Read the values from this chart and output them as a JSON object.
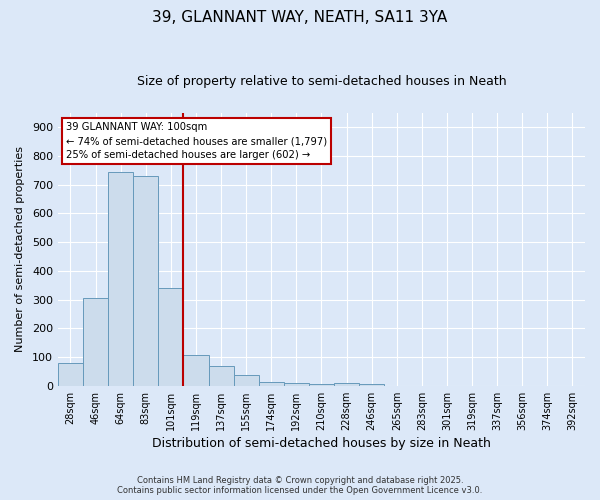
{
  "title": "39, GLANNANT WAY, NEATH, SA11 3YA",
  "subtitle": "Size of property relative to semi-detached houses in Neath",
  "xlabel": "Distribution of semi-detached houses by size in Neath",
  "ylabel": "Number of semi-detached properties",
  "categories": [
    "28sqm",
    "46sqm",
    "64sqm",
    "83sqm",
    "101sqm",
    "119sqm",
    "137sqm",
    "155sqm",
    "174sqm",
    "192sqm",
    "210sqm",
    "228sqm",
    "246sqm",
    "265sqm",
    "283sqm",
    "301sqm",
    "319sqm",
    "337sqm",
    "356sqm",
    "374sqm",
    "392sqm"
  ],
  "values": [
    80,
    307,
    743,
    730,
    340,
    108,
    68,
    38,
    15,
    11,
    5,
    10,
    5,
    0,
    0,
    0,
    0,
    0,
    0,
    0,
    0
  ],
  "bar_color": "#ccdcec",
  "bar_edge_color": "#6699bb",
  "redline_index": 4,
  "redline_color": "#bb0000",
  "annotation_title": "39 GLANNANT WAY: 100sqm",
  "annotation_line1": "← 74% of semi-detached houses are smaller (1,797)",
  "annotation_line2": "25% of semi-detached houses are larger (602) →",
  "annotation_box_color": "#ffffff",
  "annotation_box_edge": "#bb0000",
  "ylim": [
    0,
    950
  ],
  "yticks": [
    0,
    100,
    200,
    300,
    400,
    500,
    600,
    700,
    800,
    900
  ],
  "bg_color": "#dce8f8",
  "plot_bg_color": "#dce8f8",
  "grid_color": "#ffffff",
  "title_fontsize": 11,
  "subtitle_fontsize": 9,
  "footer1": "Contains HM Land Registry data © Crown copyright and database right 2025.",
  "footer2": "Contains public sector information licensed under the Open Government Licence v3.0."
}
